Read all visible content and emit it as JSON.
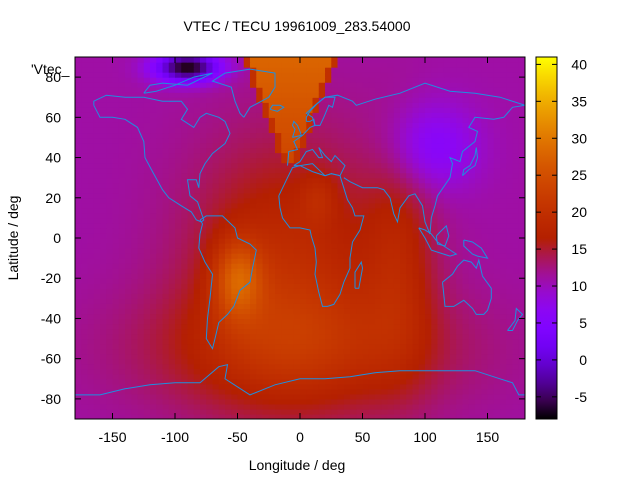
{
  "chart_data": {
    "type": "heatmap",
    "title": "VTEC / TECU 19961009_283.54000",
    "xlabel": "Longitude / deg",
    "ylabel": "Latitude / deg",
    "legend_label": "'Vtec_",
    "legend_position": "top-left",
    "xlim": [
      -180,
      180
    ],
    "ylim": [
      -90,
      90
    ],
    "xticks": [
      -150,
      -100,
      -50,
      0,
      50,
      100,
      150
    ],
    "yticks": [
      -80,
      -60,
      -40,
      -20,
      0,
      20,
      40,
      60,
      80
    ],
    "colorbar": {
      "min": -8,
      "max": 41,
      "ticks": [
        -5,
        0,
        5,
        10,
        15,
        20,
        25,
        30,
        35,
        40
      ],
      "palette": "gnuplot black-purple-red-orange-yellow"
    },
    "features": [
      {
        "name": "dayside-high-north-atlantic",
        "lon": -30,
        "lat": 75,
        "vtec": 28
      },
      {
        "name": "south-america-anomaly",
        "lon": -50,
        "lat": -20,
        "vtec": 30
      },
      {
        "name": "central-africa-peak",
        "lon": 15,
        "lat": 20,
        "vtec": 21
      },
      {
        "name": "southern-atlantic-belt",
        "lon": 0,
        "lat": -40,
        "vtec": 20
      },
      {
        "name": "asia-low",
        "lon": 105,
        "lat": 45,
        "vtec": 5
      },
      {
        "name": "north-pacific-trough",
        "lon": -90,
        "lat": 85,
        "vtec": -8
      }
    ]
  }
}
